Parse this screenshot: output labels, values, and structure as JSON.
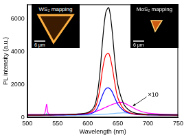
{
  "chart_data": {
    "type": "line",
    "x_label": "Wavelength (nm)",
    "y_label": "PL intensity (a.u.)",
    "xlim": [
      500,
      750
    ],
    "xticks": [
      500,
      550,
      600,
      650,
      700,
      750
    ],
    "ylim": [
      0,
      6900
    ],
    "yticks": [
      0,
      2000,
      4000,
      6000
    ],
    "grid": false,
    "series": [
      {
        "color": "#000000",
        "x": [
          500,
          520,
          540,
          560,
          580,
          600,
          610,
          615,
          620,
          625,
          630,
          635,
          640,
          645,
          650,
          660,
          670,
          680,
          700,
          720,
          750
        ],
        "values": [
          150,
          150,
          160,
          170,
          200,
          300,
          600,
          1200,
          2600,
          4800,
          6400,
          6700,
          5500,
          3500,
          2000,
          800,
          400,
          250,
          180,
          160,
          150
        ]
      },
      {
        "color": "#ff0000",
        "x": [
          500,
          520,
          540,
          560,
          580,
          600,
          610,
          615,
          620,
          625,
          630,
          635,
          640,
          645,
          650,
          660,
          670,
          680,
          700,
          720,
          750
        ],
        "values": [
          140,
          140,
          150,
          160,
          180,
          260,
          450,
          850,
          1700,
          3000,
          3800,
          3900,
          3200,
          2100,
          1200,
          500,
          280,
          200,
          160,
          150,
          140
        ]
      },
      {
        "color": "#0000ff",
        "x": [
          500,
          520,
          540,
          560,
          580,
          600,
          610,
          615,
          620,
          625,
          630,
          635,
          640,
          645,
          650,
          660,
          670,
          680,
          700,
          720,
          750
        ],
        "values": [
          130,
          130,
          140,
          150,
          160,
          200,
          300,
          500,
          900,
          1400,
          1750,
          1800,
          1600,
          1200,
          800,
          400,
          250,
          180,
          150,
          140,
          130
        ]
      },
      {
        "color": "#ff00ff",
        "x": [
          500,
          520,
          528,
          530,
          532,
          534,
          536,
          545,
          560,
          580,
          600,
          610,
          620,
          630,
          640,
          650,
          655,
          660,
          670,
          680,
          690,
          700,
          720,
          750
        ],
        "values": [
          180,
          185,
          190,
          400,
          800,
          300,
          200,
          195,
          195,
          200,
          250,
          330,
          450,
          620,
          780,
          900,
          920,
          880,
          700,
          500,
          350,
          260,
          200,
          180
        ]
      },
      {
        "color": "#80c0ff",
        "x": [
          500,
          530,
          532,
          534,
          560,
          600,
          630,
          650,
          660,
          670,
          690,
          720,
          750
        ],
        "values": [
          120,
          125,
          250,
          125,
          130,
          150,
          200,
          260,
          280,
          250,
          190,
          150,
          130
        ]
      }
    ],
    "annotations": [
      "×10"
    ],
    "insets": [
      {
        "title": "WS₂ mapping",
        "scale_bar": "6 μm"
      },
      {
        "title": "MoS₂ mapping",
        "scale_bar": "6 μm"
      }
    ]
  }
}
